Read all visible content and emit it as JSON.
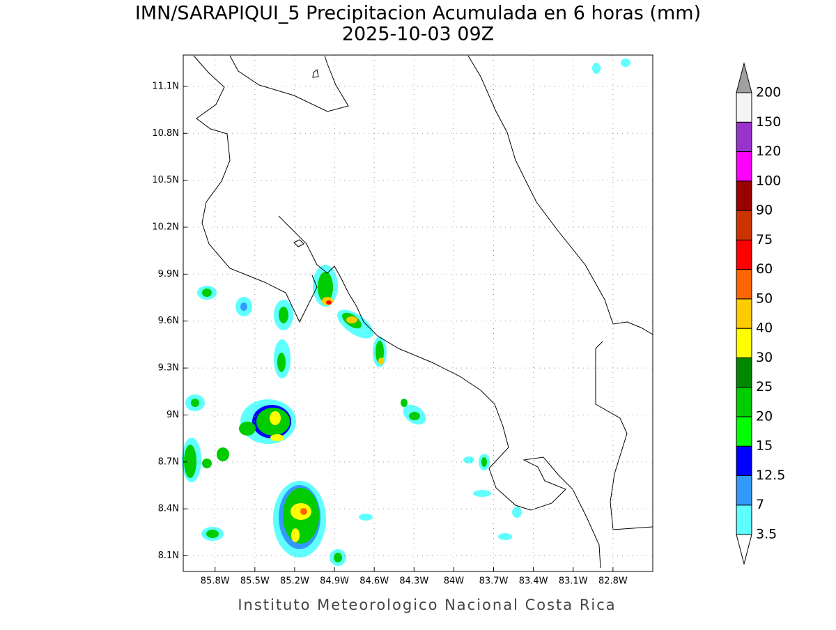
{
  "header": {
    "title": "IMN/SARAPIQUI_5 Precipitacion Acumulada en 6 horas (mm)",
    "subtitle": "2025-10-03 09Z"
  },
  "map": {
    "xlim": [
      -86.04,
      -82.5
    ],
    "ylim": [
      8.0,
      11.3
    ],
    "grid": true,
    "xticks": [
      {
        "value": -85.8,
        "label": "85.8W"
      },
      {
        "value": -85.5,
        "label": "85.5W"
      },
      {
        "value": -85.2,
        "label": "85.2W"
      },
      {
        "value": -84.9,
        "label": "84.9W"
      },
      {
        "value": -84.6,
        "label": "84.6W"
      },
      {
        "value": -84.3,
        "label": "84.3W"
      },
      {
        "value": -84.0,
        "label": "84W"
      },
      {
        "value": -83.7,
        "label": "83.7W"
      },
      {
        "value": -83.4,
        "label": "83.4W"
      },
      {
        "value": -83.1,
        "label": "83.1W"
      },
      {
        "value": -82.8,
        "label": "82.8W"
      }
    ],
    "yticks": [
      {
        "value": 8.1,
        "label": "8.1N"
      },
      {
        "value": 8.4,
        "label": "8.4N"
      },
      {
        "value": 8.7,
        "label": "8.7N"
      },
      {
        "value": 9.0,
        "label": "9N"
      },
      {
        "value": 9.3,
        "label": "9.3N"
      },
      {
        "value": 9.6,
        "label": "9.6N"
      },
      {
        "value": 9.9,
        "label": "9.9N"
      },
      {
        "value": 10.2,
        "label": "10.2N"
      },
      {
        "value": 10.5,
        "label": "10.5N"
      },
      {
        "value": 10.8,
        "label": "10.8N"
      },
      {
        "value": 11.1,
        "label": "11.1N"
      }
    ]
  },
  "colorbar": {
    "levels": [
      3.5,
      7,
      12.5,
      15,
      20,
      25,
      30,
      40,
      50,
      60,
      75,
      90,
      100,
      120,
      150,
      200
    ],
    "colors": [
      "#5fffff",
      "#3399ff",
      "#0000ff",
      "#00ff00",
      "#00cc00",
      "#008800",
      "#ffff00",
      "#ffcc00",
      "#ff6600",
      "#ff0000",
      "#cc3300",
      "#990000",
      "#ff00ff",
      "#9933cc",
      "#f5f5f5"
    ],
    "under_color": "#ffffff",
    "over_color": "#a0a0a0"
  },
  "footer": {
    "credit": "Instituto Meteorologico Nacional Costa Rica"
  }
}
